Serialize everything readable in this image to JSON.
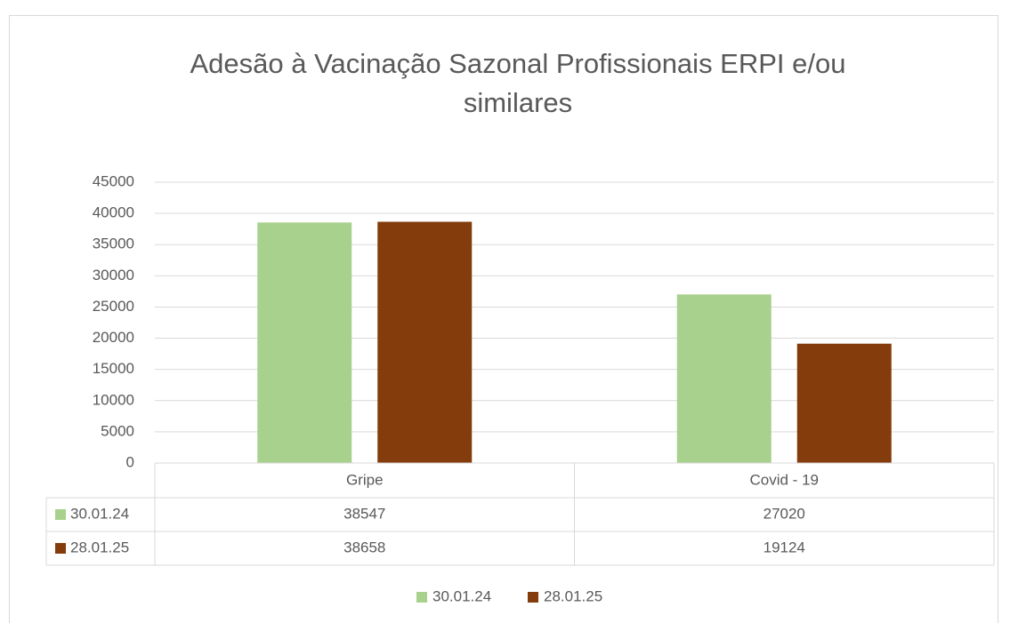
{
  "chart_data": {
    "type": "bar",
    "title": "Adesão à Vacinação Sazonal Profissionais ERPI e/ou similares",
    "categories": [
      "Gripe",
      "Covid - 19"
    ],
    "series": [
      {
        "name": "30.01.24",
        "color": "#a9d18e",
        "values": [
          38547,
          27020
        ]
      },
      {
        "name": "28.01.25",
        "color": "#843c0c",
        "values": [
          38658,
          19124
        ]
      }
    ],
    "ylim": [
      0,
      45000
    ],
    "yticks": [
      0,
      5000,
      10000,
      15000,
      20000,
      25000,
      30000,
      35000,
      40000,
      45000
    ],
    "grid": true,
    "legend": "bottom",
    "data_table": true
  }
}
